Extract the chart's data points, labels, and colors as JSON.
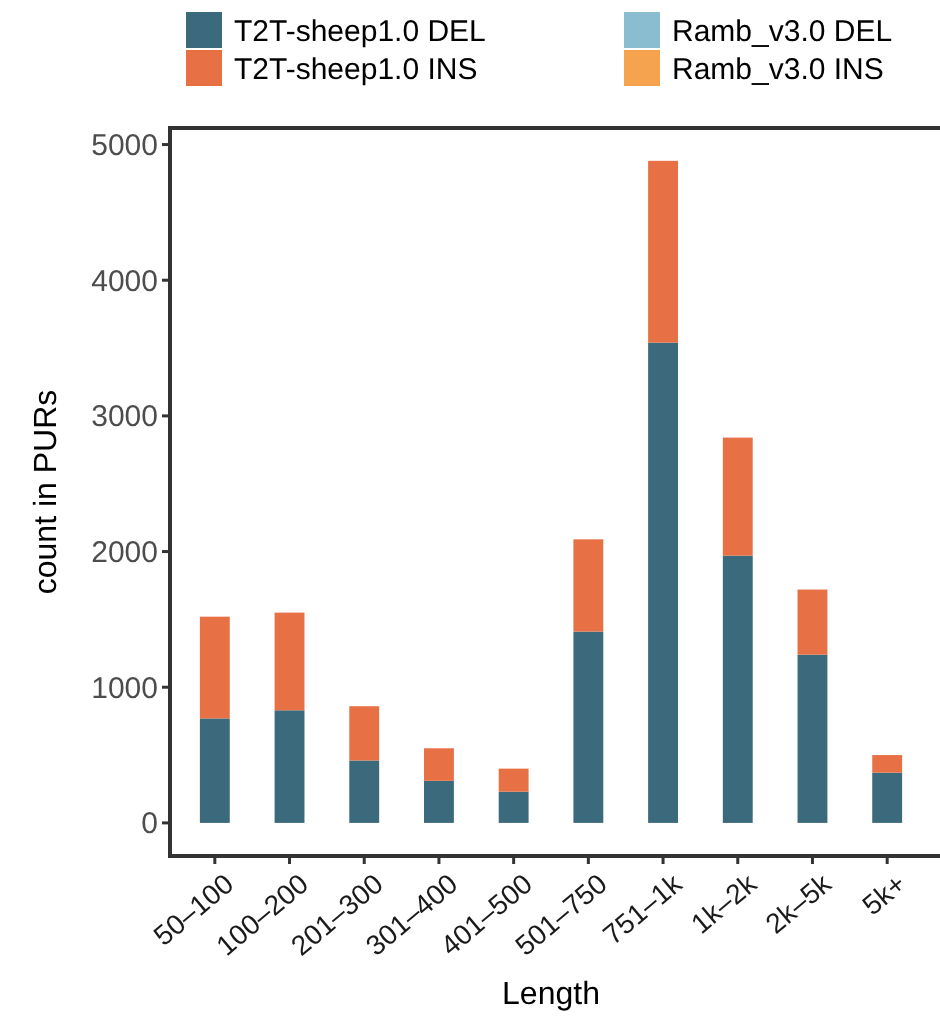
{
  "chart_data": {
    "type": "bar",
    "stacked": true,
    "xlabel": "Length",
    "ylabel": "count in PURs",
    "categories": [
      "50–100",
      "100–200",
      "201–300",
      "301–400",
      "401–500",
      "501–750",
      "751–1k",
      "1k–2k",
      "2k–5k",
      "5k+"
    ],
    "series": [
      {
        "name": "T2T-sheep1.0 DEL",
        "color": "#3b6a7c",
        "values": [
          770,
          830,
          460,
          310,
          230,
          1410,
          3540,
          1970,
          1240,
          370
        ]
      },
      {
        "name": "T2T-sheep1.0 INS",
        "color": "#e87045",
        "values": [
          750,
          720,
          400,
          240,
          170,
          680,
          1340,
          870,
          480,
          130
        ]
      },
      {
        "name": "Ramb_v3.0 DEL",
        "color": "#8bbdd0",
        "values": [
          null,
          null,
          null,
          null,
          null,
          null,
          null,
          null,
          null,
          null
        ]
      },
      {
        "name": "Ramb_v3.0 INS",
        "color": "#f6a350",
        "values": [
          null,
          null,
          null,
          null,
          null,
          null,
          null,
          null,
          null,
          null
        ]
      }
    ],
    "ylim": [
      -244,
      5122
    ],
    "yticks": [
      0,
      1000,
      2000,
      3000,
      4000,
      5000
    ],
    "grid": false,
    "legend": "top"
  }
}
